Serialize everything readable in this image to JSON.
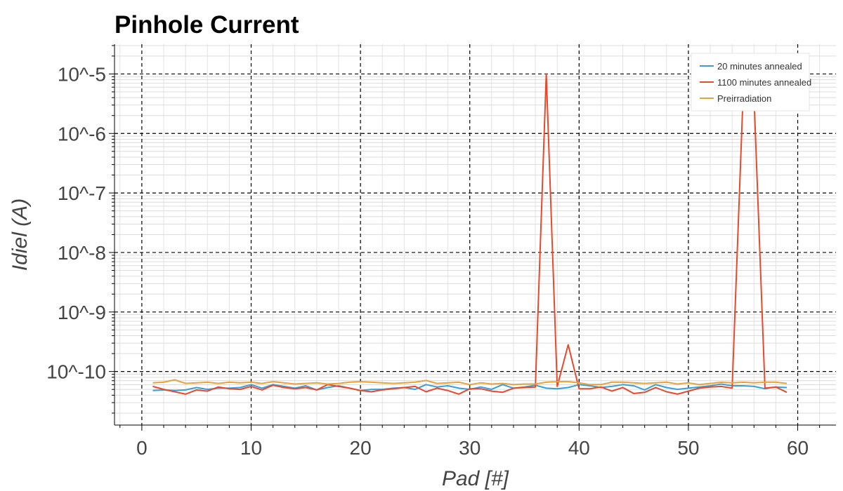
{
  "chart_data": {
    "type": "line",
    "title": "Pinhole Current",
    "xlabel": "Pad [#]",
    "ylabel": "Idiel (A)",
    "xlim": [
      -2.5,
      63.5
    ],
    "ylim_log10": [
      -10.9,
      -4.5
    ],
    "y_scale": "log",
    "grid": true,
    "legend_position": "top-right",
    "x_ticks": [
      0,
      10,
      20,
      30,
      40,
      50,
      60
    ],
    "x_tick_labels": [
      "0",
      "10",
      "20",
      "30",
      "40",
      "50",
      "60"
    ],
    "y_ticks_log10": [
      -10,
      -9,
      -8,
      -7,
      -6,
      -5
    ],
    "y_tick_labels": [
      "10^-10",
      "10^-9",
      "10^-8",
      "10^-7",
      "10^-6",
      "10^-5"
    ],
    "series": [
      {
        "name": "20 minutes annealed",
        "color": "#3a9fd8",
        "x": [
          1,
          2,
          3,
          4,
          5,
          6,
          7,
          8,
          9,
          10,
          11,
          12,
          13,
          14,
          15,
          16,
          17,
          18,
          19,
          20,
          21,
          22,
          23,
          24,
          25,
          26,
          27,
          28,
          29,
          30,
          31,
          32,
          33,
          34,
          35,
          36,
          37,
          38,
          39,
          40,
          41,
          42,
          43,
          44,
          45,
          46,
          47,
          48,
          49,
          50,
          51,
          52,
          53,
          54,
          55,
          56,
          57,
          58,
          59
        ],
        "log10_y": [
          -10.32,
          -10.31,
          -10.32,
          -10.31,
          -10.27,
          -10.3,
          -10.28,
          -10.28,
          -10.27,
          -10.22,
          -10.28,
          -10.22,
          -10.25,
          -10.28,
          -10.24,
          -10.31,
          -10.27,
          -10.24,
          -10.28,
          -10.32,
          -10.3,
          -10.3,
          -10.28,
          -10.27,
          -10.3,
          -10.22,
          -10.26,
          -10.24,
          -10.28,
          -10.3,
          -10.26,
          -10.3,
          -10.22,
          -10.28,
          -10.26,
          -10.23,
          -10.28,
          -10.29,
          -10.27,
          -10.22,
          -10.24,
          -10.27,
          -10.25,
          -10.22,
          -10.24,
          -10.31,
          -10.22,
          -10.27,
          -10.3,
          -10.28,
          -10.26,
          -10.24,
          -10.21,
          -10.24,
          -10.24,
          -10.25,
          -10.29,
          -10.26,
          -10.27
        ]
      },
      {
        "name": "1100 minutes annealed",
        "color": "#e8492c",
        "x": [
          1,
          2,
          3,
          4,
          5,
          6,
          7,
          8,
          9,
          10,
          11,
          12,
          13,
          14,
          15,
          16,
          17,
          18,
          19,
          20,
          21,
          22,
          23,
          24,
          25,
          26,
          27,
          28,
          29,
          30,
          31,
          32,
          33,
          34,
          35,
          36,
          37,
          38,
          39,
          40,
          41,
          42,
          43,
          44,
          45,
          46,
          47,
          48,
          49,
          50,
          51,
          52,
          53,
          54,
          55,
          56,
          57,
          58,
          59
        ],
        "log10_y": [
          -10.25,
          -10.3,
          -10.34,
          -10.38,
          -10.31,
          -10.33,
          -10.26,
          -10.29,
          -10.3,
          -10.25,
          -10.31,
          -10.23,
          -10.27,
          -10.29,
          -10.27,
          -10.31,
          -10.22,
          -10.25,
          -10.28,
          -10.32,
          -10.34,
          -10.31,
          -10.29,
          -10.27,
          -10.25,
          -10.34,
          -10.28,
          -10.32,
          -10.38,
          -10.29,
          -10.29,
          -10.33,
          -10.35,
          -10.28,
          -10.27,
          -10.26,
          -5.0,
          -10.25,
          -9.55,
          -10.29,
          -10.29,
          -10.26,
          -10.33,
          -10.27,
          -10.37,
          -10.35,
          -10.27,
          -10.34,
          -10.38,
          -10.33,
          -10.28,
          -10.26,
          -10.25,
          -10.28,
          -5.38,
          -5.38,
          -10.28,
          -10.26,
          -10.35
        ]
      },
      {
        "name": "Preirradiation",
        "color": "#e8a23c",
        "x": [
          1,
          2,
          3,
          4,
          5,
          6,
          7,
          8,
          9,
          10,
          11,
          12,
          13,
          14,
          15,
          16,
          17,
          18,
          19,
          20,
          21,
          22,
          23,
          24,
          25,
          26,
          27,
          28,
          29,
          30,
          31,
          32,
          33,
          34,
          35,
          36,
          37,
          38,
          39,
          40,
          41,
          42,
          43,
          44,
          45,
          46,
          47,
          48,
          49,
          50,
          51,
          52,
          53,
          54,
          55,
          56,
          57,
          58,
          59
        ],
        "log10_y": [
          -10.19,
          -10.18,
          -10.14,
          -10.2,
          -10.19,
          -10.18,
          -10.2,
          -10.18,
          -10.19,
          -10.18,
          -10.2,
          -10.17,
          -10.19,
          -10.21,
          -10.2,
          -10.19,
          -10.21,
          -10.2,
          -10.18,
          -10.17,
          -10.18,
          -10.19,
          -10.2,
          -10.19,
          -10.18,
          -10.15,
          -10.2,
          -10.19,
          -10.18,
          -10.22,
          -10.19,
          -10.21,
          -10.2,
          -10.22,
          -10.21,
          -10.21,
          -10.18,
          -10.17,
          -10.17,
          -10.19,
          -10.22,
          -10.22,
          -10.18,
          -10.18,
          -10.19,
          -10.2,
          -10.19,
          -10.18,
          -10.21,
          -10.19,
          -10.22,
          -10.2,
          -10.18,
          -10.19,
          -10.18,
          -10.19,
          -10.18,
          -10.18,
          -10.2
        ]
      }
    ]
  }
}
